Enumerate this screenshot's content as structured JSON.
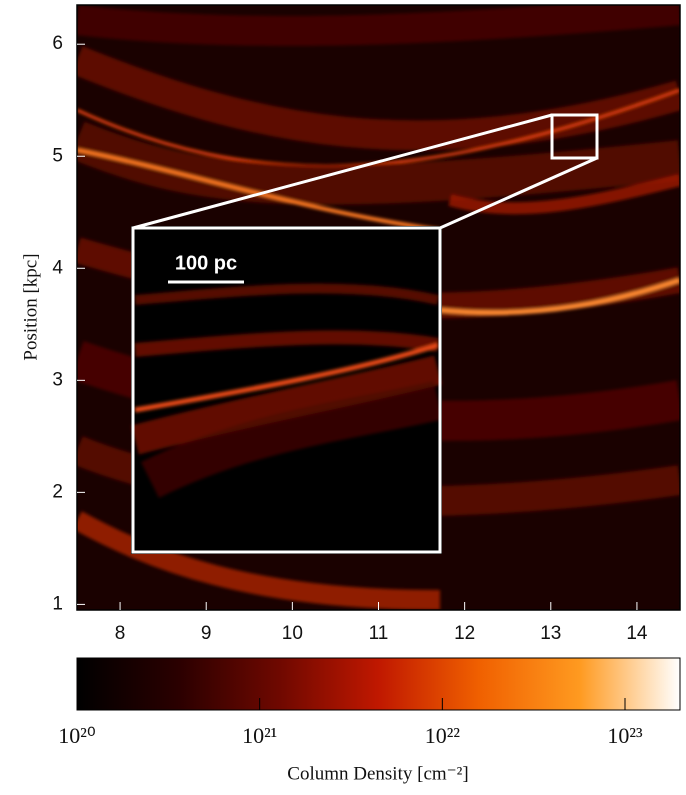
{
  "chart_data": {
    "type": "image",
    "ylabel": "Position [kpc]",
    "xlim": [
      7.5,
      14.5
    ],
    "xticks": [
      8,
      9,
      10,
      11,
      12,
      13,
      14
    ],
    "ylim": [
      0.95,
      6.35
    ],
    "yticks": [
      1,
      2,
      3,
      4,
      5,
      6
    ],
    "inset_scale_label": "100 pc",
    "colorbar": {
      "label": "Column Density [cm⁻²]",
      "scale": "log",
      "lim": [
        1e+20,
        2e+23
      ],
      "ticks": [
        {
          "value": 1e+20,
          "label": "10²⁰"
        },
        {
          "value": 1e+21,
          "label": "10²¹"
        },
        {
          "value": 1e+22,
          "label": "10²²"
        },
        {
          "value": 1e+23,
          "label": "10²³"
        }
      ],
      "colors": [
        "#000000",
        "#2a0000",
        "#6e0800",
        "#c01800",
        "#f06000",
        "#ff9a20",
        "#ffffff"
      ]
    }
  }
}
